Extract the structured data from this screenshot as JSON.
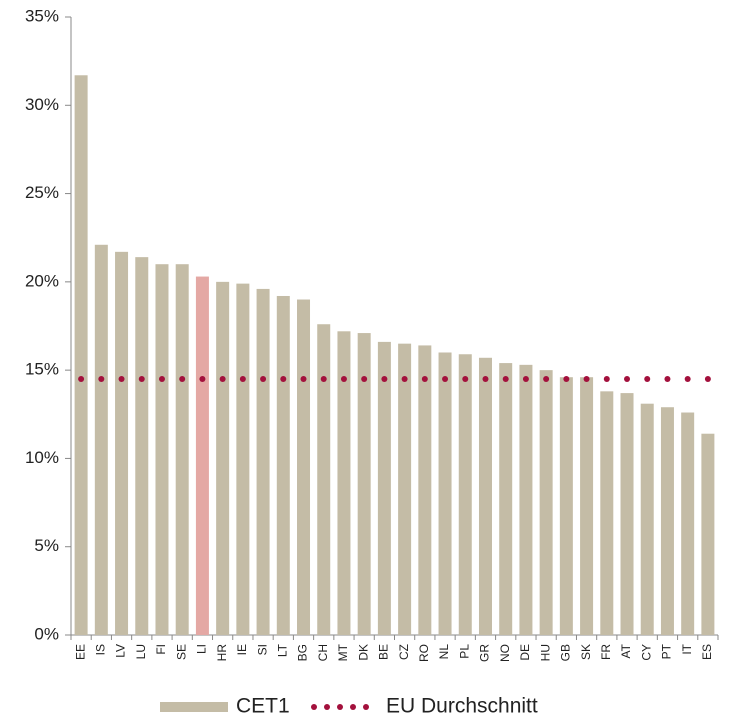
{
  "chart_data": {
    "type": "bar",
    "categories": [
      "EE",
      "IS",
      "LV",
      "LU",
      "FI",
      "SE",
      "LI",
      "HR",
      "IE",
      "SI",
      "LT",
      "BG",
      "CH",
      "MT",
      "DK",
      "BE",
      "CZ",
      "RO",
      "NL",
      "PL",
      "GR",
      "NO",
      "DE",
      "HU",
      "GB",
      "SK",
      "FR",
      "AT",
      "CY",
      "PT",
      "IT",
      "ES"
    ],
    "series": [
      {
        "name": "CET1",
        "color": "#c4bca6",
        "values": [
          31.7,
          22.1,
          21.7,
          21.4,
          21.0,
          21.0,
          20.3,
          20.0,
          19.9,
          19.6,
          19.2,
          19.0,
          17.6,
          17.2,
          17.1,
          16.6,
          16.5,
          16.4,
          16.0,
          15.9,
          15.7,
          15.4,
          15.3,
          15.0,
          14.6,
          14.6,
          13.8,
          13.7,
          13.1,
          12.9,
          12.6,
          11.4
        ],
        "colors": [
          "#c4bca6",
          "#c4bca6",
          "#c4bca6",
          "#c4bca6",
          "#c4bca6",
          "#c4bca6",
          "#e4a8a4",
          "#c4bca6",
          "#c4bca6",
          "#c4bca6",
          "#c4bca6",
          "#c4bca6",
          "#c4bca6",
          "#c4bca6",
          "#c4bca6",
          "#c4bca6",
          "#c4bca6",
          "#c4bca6",
          "#c4bca6",
          "#c4bca6",
          "#c4bca6",
          "#c4bca6",
          "#c4bca6",
          "#c4bca6",
          "#c4bca6",
          "#c4bca6",
          "#c4bca6",
          "#c4bca6",
          "#c4bca6",
          "#c4bca6",
          "#c4bca6",
          "#c4bca6"
        ]
      },
      {
        "name": "EU Durchschnitt",
        "color": "#a3103c",
        "value": 14.5
      }
    ],
    "ylim": [
      0,
      35
    ],
    "yticks": [
      {
        "value": 0,
        "label": "0%"
      },
      {
        "value": 5,
        "label": "5%"
      },
      {
        "value": 10,
        "label": "10%"
      },
      {
        "value": 15,
        "label": "15%"
      },
      {
        "value": 20,
        "label": "20%"
      },
      {
        "value": 25,
        "label": "25%"
      },
      {
        "value": 30,
        "label": "30%"
      },
      {
        "value": 35,
        "label": "35%"
      }
    ],
    "grid": false,
    "legend": "bottom"
  }
}
